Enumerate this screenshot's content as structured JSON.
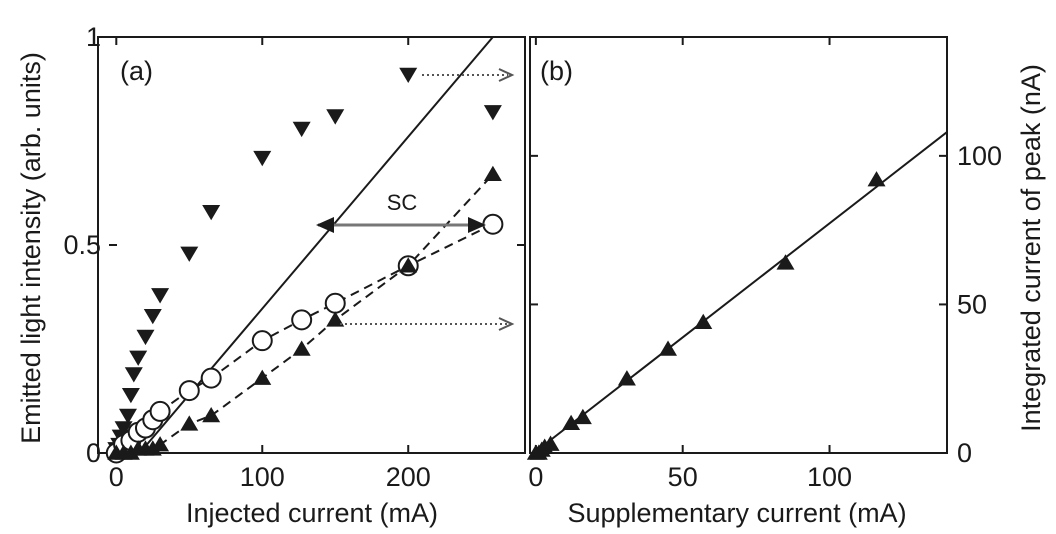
{
  "chart_data": [
    {
      "type": "scatter",
      "panel_label": "(a)",
      "xlabel": "Injected current (mA)",
      "ylabel": "Emitted light intensity (arb. units)",
      "xlim": [
        -5,
        280
      ],
      "ylim": [
        0,
        1
      ],
      "xticks": [
        0,
        100,
        200
      ],
      "xtick_labels": [
        "0",
        "100",
        "200"
      ],
      "yticks": [
        0,
        0.5,
        1
      ],
      "ytick_labels": [
        "0",
        "0.5",
        "1"
      ],
      "grid": false,
      "annotation": "SC",
      "series": [
        {
          "marker": "triangle-down-filled",
          "line": "none",
          "x": [
            0,
            2,
            3,
            5,
            8,
            10,
            12,
            15,
            20,
            25,
            30,
            50,
            65,
            100,
            127,
            150,
            200,
            258
          ],
          "y": [
            0.01,
            0.02,
            0.04,
            0.06,
            0.09,
            0.14,
            0.19,
            0.23,
            0.28,
            0.33,
            0.38,
            0.48,
            0.58,
            0.71,
            0.78,
            0.81,
            0.91,
            0.82
          ]
        },
        {
          "marker": "circle-open",
          "line": "dashed",
          "x": [
            0,
            5,
            10,
            15,
            20,
            25,
            30,
            50,
            65,
            100,
            127,
            150,
            200,
            258
          ],
          "y": [
            0.0,
            0.02,
            0.03,
            0.05,
            0.06,
            0.08,
            0.1,
            0.15,
            0.18,
            0.27,
            0.32,
            0.36,
            0.45,
            0.55
          ]
        },
        {
          "marker": "triangle-up-filled",
          "line": "dashed",
          "x": [
            0,
            5,
            10,
            15,
            20,
            25,
            30,
            50,
            65,
            100,
            127,
            150,
            200,
            258
          ],
          "y": [
            0.0,
            0.0,
            0.0,
            0.01,
            0.01,
            0.01,
            0.02,
            0.07,
            0.09,
            0.18,
            0.25,
            0.32,
            0.45,
            0.67
          ]
        },
        {
          "marker": "none",
          "line": "solid",
          "x": [
            16,
            258
          ],
          "y": [
            0.0,
            1.0
          ]
        }
      ]
    },
    {
      "type": "scatter",
      "panel_label": "(b)",
      "xlabel": "Supplementary current (mA)",
      "ylabel": "Integrated current of peak (nA)",
      "xlim": [
        -2,
        140
      ],
      "ylim": [
        0,
        140
      ],
      "xticks": [
        0,
        50,
        100
      ],
      "xtick_labels": [
        "0",
        "50",
        "100"
      ],
      "yticks": [
        0,
        50,
        100
      ],
      "ytick_labels": [
        "0",
        "50",
        "100"
      ],
      "grid": false,
      "series": [
        {
          "marker": "triangle-up-filled",
          "line": "none",
          "x": [
            0,
            1,
            2,
            3,
            5,
            12,
            16,
            31,
            45,
            57,
            85,
            116
          ],
          "y": [
            0,
            0,
            1,
            2,
            3,
            10,
            12,
            25,
            35,
            44,
            64,
            92
          ]
        },
        {
          "marker": "none",
          "line": "solid",
          "x": [
            -2,
            140
          ],
          "y": [
            -1,
            108
          ]
        }
      ]
    }
  ]
}
